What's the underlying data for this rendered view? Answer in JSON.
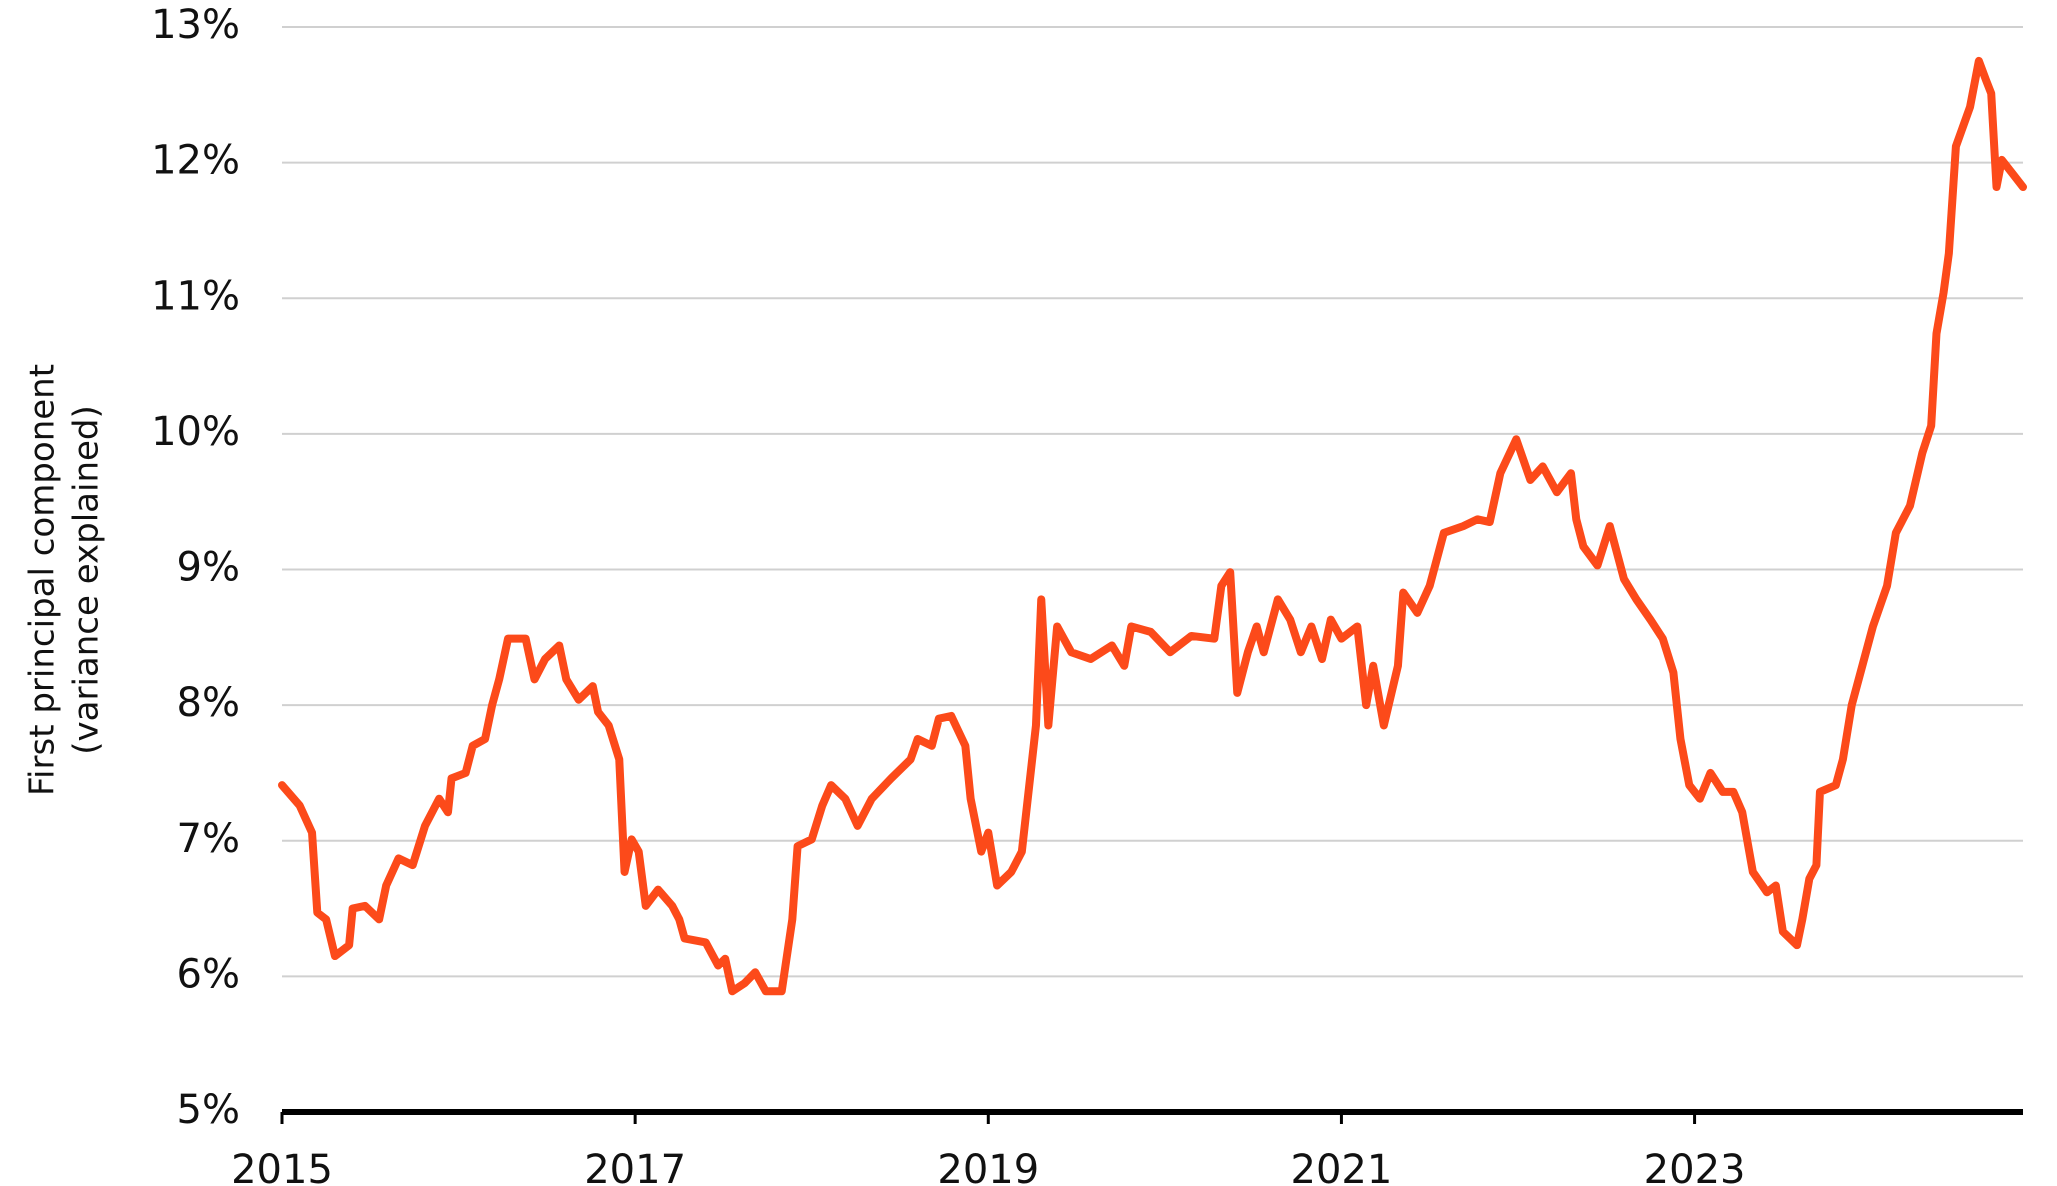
{
  "chart_data": {
    "type": "line",
    "ylabel": [
      "First principal component",
      "(variance explained)"
    ],
    "xlim": [
      2015,
      2024.86
    ],
    "xticks": [
      2015,
      2017,
      2019,
      2021,
      2023
    ],
    "ylim": [
      5,
      13
    ],
    "yticks": [
      {
        "value": 5,
        "label": "5%"
      },
      {
        "value": 6,
        "label": "6%"
      },
      {
        "value": 7,
        "label": "7%"
      },
      {
        "value": 8,
        "label": "8%"
      },
      {
        "value": 9,
        "label": "9%"
      },
      {
        "value": 10,
        "label": "10%"
      },
      {
        "value": 11,
        "label": "11%"
      },
      {
        "value": 12,
        "label": "12%"
      },
      {
        "value": 13,
        "label": "13%"
      }
    ],
    "grid": true,
    "x": [
      2015.0,
      2015.1,
      2015.17,
      2015.2,
      2015.25,
      2015.3,
      2015.38,
      2015.4,
      2015.47,
      2015.55,
      2015.59,
      2015.66,
      2015.74,
      2015.81,
      2015.89,
      2015.94,
      2015.96,
      2016.04,
      2016.08,
      2016.15,
      2016.19,
      2016.23,
      2016.28,
      2016.38,
      2016.43,
      2016.49,
      2016.57,
      2016.61,
      2016.68,
      2016.76,
      2016.79,
      2016.85,
      2016.91,
      2016.94,
      2016.98,
      2017.02,
      2017.06,
      2017.13,
      2017.21,
      2017.25,
      2017.28,
      2017.4,
      2017.47,
      2017.51,
      2017.55,
      2017.62,
      2017.68,
      2017.74,
      2017.83,
      2017.89,
      2017.92,
      2018.0,
      2018.06,
      2018.11,
      2018.19,
      2018.26,
      2018.34,
      2018.45,
      2018.56,
      2018.6,
      2018.68,
      2018.72,
      2018.79,
      2018.87,
      2018.9,
      2018.96,
      2019.0,
      2019.05,
      2019.13,
      2019.19,
      2019.27,
      2019.3,
      2019.34,
      2019.39,
      2019.47,
      2019.58,
      2019.7,
      2019.77,
      2019.81,
      2019.92,
      2020.03,
      2020.15,
      2020.28,
      2020.32,
      2020.37,
      2020.41,
      2020.47,
      2020.52,
      2020.56,
      2020.64,
      2020.71,
      2020.77,
      2020.83,
      2020.89,
      2020.94,
      2021.0,
      2021.09,
      2021.14,
      2021.18,
      2021.24,
      2021.32,
      2021.35,
      2021.43,
      2021.5,
      2021.58,
      2021.69,
      2021.77,
      2021.84,
      2021.9,
      2021.99,
      2022.07,
      2022.14,
      2022.22,
      2022.3,
      2022.33,
      2022.37,
      2022.45,
      2022.52,
      2022.6,
      2022.67,
      2022.75,
      2022.82,
      2022.88,
      2022.92,
      2022.97,
      2023.03,
      2023.09,
      2023.16,
      2023.22,
      2023.27,
      2023.33,
      2023.41,
      2023.46,
      2023.5,
      2023.58,
      2023.61,
      2023.65,
      2023.69,
      2023.71,
      2023.8,
      2023.84,
      2023.89,
      2023.95,
      2024.01,
      2024.09,
      2024.14,
      2024.22,
      2024.29,
      2024.34,
      2024.37,
      2024.41,
      2024.44,
      2024.48,
      2024.56,
      2024.61,
      2024.65,
      2024.68,
      2024.71,
      2024.74,
      2024.8,
      2024.86
    ],
    "series": [
      {
        "color": "#fc4a1a",
        "values": [
          7.41,
          7.26,
          7.06,
          6.47,
          6.42,
          6.15,
          6.23,
          6.5,
          6.52,
          6.42,
          6.67,
          6.87,
          6.82,
          7.11,
          7.31,
          7.21,
          7.46,
          7.5,
          7.7,
          7.75,
          8.0,
          8.19,
          8.49,
          8.49,
          8.19,
          8.34,
          8.44,
          8.19,
          8.04,
          8.14,
          7.95,
          7.85,
          7.6,
          6.77,
          7.01,
          6.92,
          6.52,
          6.64,
          6.52,
          6.42,
          6.28,
          6.25,
          6.08,
          6.13,
          5.89,
          5.95,
          6.03,
          5.89,
          5.89,
          6.42,
          6.96,
          7.01,
          7.26,
          7.41,
          7.31,
          7.11,
          7.31,
          7.46,
          7.6,
          7.75,
          7.7,
          7.9,
          7.92,
          7.7,
          7.31,
          6.92,
          7.06,
          6.67,
          6.77,
          6.92,
          7.85,
          8.78,
          7.85,
          8.58,
          8.39,
          8.34,
          8.44,
          8.29,
          8.58,
          8.54,
          8.39,
          8.51,
          8.49,
          8.88,
          8.98,
          8.09,
          8.39,
          8.58,
          8.39,
          8.78,
          8.63,
          8.39,
          8.58,
          8.34,
          8.63,
          8.49,
          8.58,
          8.0,
          8.29,
          7.85,
          8.29,
          8.83,
          8.68,
          8.88,
          9.27,
          9.32,
          9.37,
          9.35,
          9.71,
          9.96,
          9.66,
          9.76,
          9.57,
          9.71,
          9.37,
          9.17,
          9.03,
          9.32,
          8.93,
          8.78,
          8.63,
          8.49,
          8.24,
          7.75,
          7.41,
          7.31,
          7.5,
          7.36,
          7.36,
          7.21,
          6.77,
          6.62,
          6.67,
          6.33,
          6.23,
          6.42,
          6.72,
          6.82,
          7.36,
          7.41,
          7.6,
          8.0,
          8.29,
          8.58,
          8.88,
          9.27,
          9.47,
          9.86,
          10.06,
          10.74,
          11.04,
          11.33,
          12.12,
          12.41,
          12.75,
          12.61,
          12.51,
          11.82,
          12.02,
          11.92,
          11.82
        ]
      }
    ]
  }
}
